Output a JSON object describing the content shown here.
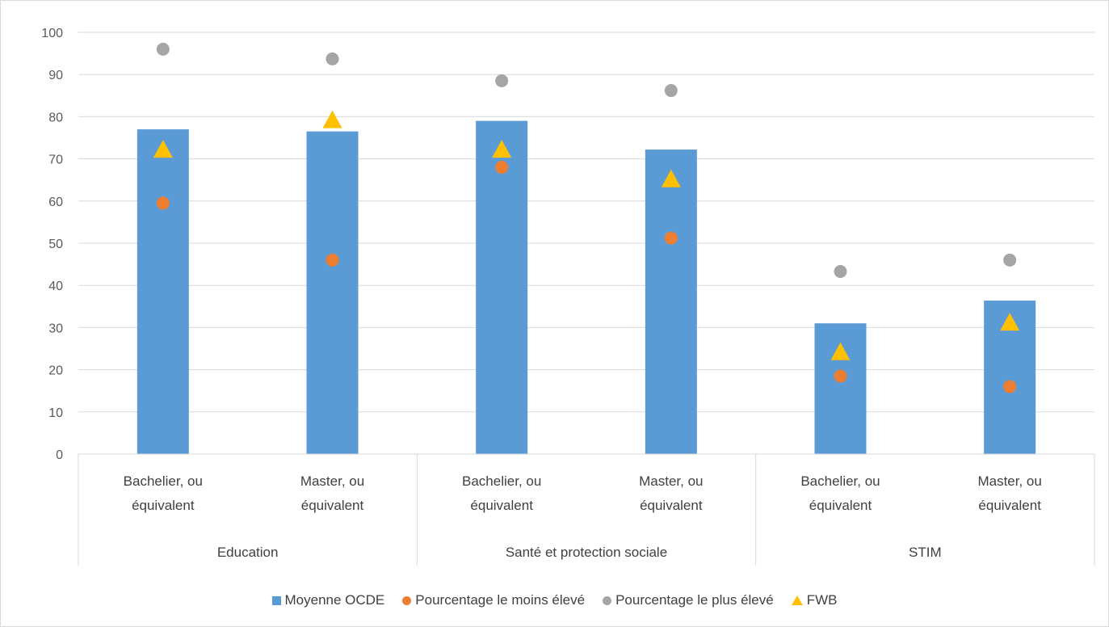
{
  "chart_data": {
    "type": "bar",
    "title": "",
    "xlabel": "",
    "ylabel": "",
    "ylim": [
      0,
      100
    ],
    "yticks": [
      0,
      10,
      20,
      30,
      40,
      50,
      60,
      70,
      80,
      90,
      100
    ],
    "grid": true,
    "legend_position": "bottom",
    "groups": [
      {
        "label": "Education",
        "categories": [
          "Bachelier, ou équivalent",
          "Master, ou équivalent"
        ]
      },
      {
        "label": "Santé et protection sociale",
        "categories": [
          "Bachelier, ou équivalent",
          "Master, ou équivalent"
        ]
      },
      {
        "label": "STIM",
        "categories": [
          "Bachelier, ou équivalent",
          "Master, ou équivalent"
        ]
      }
    ],
    "categories": [
      "Bachelier, ou équivalent",
      "Master, ou équivalent",
      "Bachelier, ou équivalent",
      "Master, ou équivalent",
      "Bachelier, ou équivalent",
      "Master, ou équivalent"
    ],
    "series": [
      {
        "name": "Moyenne OCDE",
        "type": "bar",
        "color": "#5b9bd5",
        "marker": "square",
        "values": [
          77,
          76.5,
          79,
          72.2,
          31,
          36.4
        ]
      },
      {
        "name": "Pourcentage le moins élevé",
        "type": "scatter",
        "color": "#ed7d31",
        "marker": "circle",
        "values": [
          59.5,
          46,
          68,
          51.2,
          18.5,
          16
        ]
      },
      {
        "name": "Pourcentage le plus élevé",
        "type": "scatter",
        "color": "#a5a5a5",
        "marker": "circle",
        "values": [
          96,
          93.7,
          88.5,
          86.2,
          43.3,
          46
        ]
      },
      {
        "name": "FWB",
        "type": "scatter",
        "color": "#ffc000",
        "marker": "triangle",
        "values": [
          72,
          79,
          72,
          65,
          24,
          31
        ]
      }
    ]
  }
}
